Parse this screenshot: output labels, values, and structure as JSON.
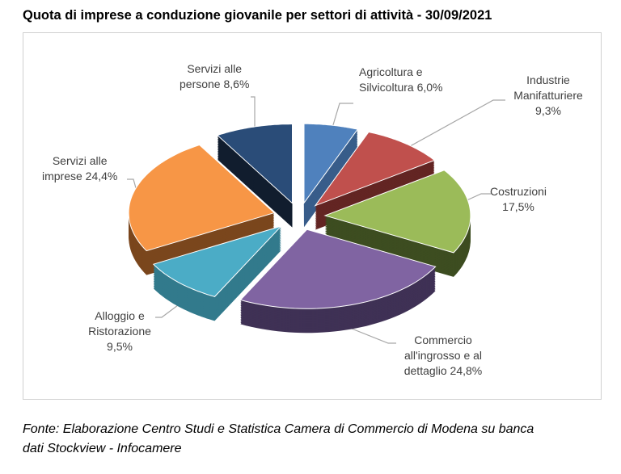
{
  "chart_data": {
    "type": "pie",
    "title": "Quota di imprese a conduzione giovanile per settori di attività - 30/09/2021",
    "style": "3d-exploded",
    "slices": [
      {
        "label": "Agricoltura e Silvicoltura",
        "value": 6.0,
        "value_label": "6,0%",
        "color": "#4f81bd",
        "side": "#385d8a"
      },
      {
        "label": "Industrie Manifatturiere",
        "value": 9.3,
        "value_label": "9,3%",
        "color": "#c0504d",
        "side": "#632523"
      },
      {
        "label": "Costruzioni",
        "value": 17.5,
        "value_label": "17,5%",
        "color": "#9bbb59",
        "side": "#3d4d20"
      },
      {
        "label": "Commercio all'ingrosso e al dettaglio",
        "value": 24.8,
        "value_label": "24,8%",
        "color": "#8064a2",
        "side": "#3f3155"
      },
      {
        "label": "Alloggio e Ristorazione",
        "value": 9.5,
        "value_label": "9,5%",
        "color": "#4bacc6",
        "side": "#327a8c"
      },
      {
        "label": "Servizi alle imprese",
        "value": 24.4,
        "value_label": "24,4%",
        "color": "#f79646",
        "side": "#7a461d"
      },
      {
        "label": "Servizi alle persone",
        "value": 8.6,
        "value_label": "8,6%",
        "color": "#2a4c78",
        "side": "#111d2e"
      }
    ]
  },
  "labels": {
    "agri": [
      "Agricoltura e",
      "Silvicoltura 6,0%"
    ],
    "ind": [
      "Industrie",
      "Manifatturiere",
      "9,3%"
    ],
    "cost": [
      "Costruzioni",
      "17,5%"
    ],
    "comm": [
      "Commercio",
      "all'ingrosso  e al",
      "dettaglio 24,8%"
    ],
    "allog": [
      "Alloggio e",
      "Ristorazione",
      "9,5%"
    ],
    "simp": [
      "Servizi alle",
      "imprese 24,4%"
    ],
    "spers": [
      "Servizi alle",
      "persone 8,6%"
    ]
  },
  "footer": [
    "Fonte: Elaborazione Centro Studi e Statistica Camera di Commercio di Modena su banca",
    "dati Stockview - Infocamere"
  ]
}
